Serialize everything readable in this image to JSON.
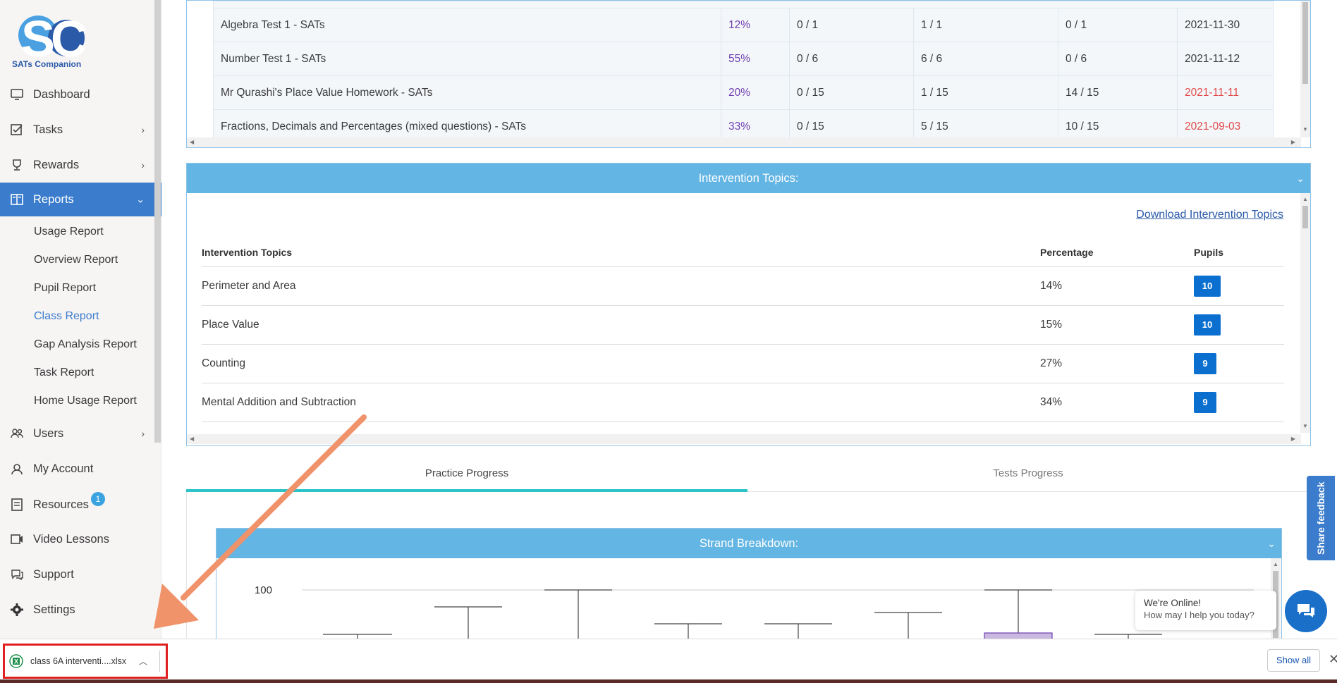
{
  "sidebar": {
    "logo_text": "SATs Companion",
    "items": [
      {
        "label": "Dashboard",
        "icon": "monitor-icon"
      },
      {
        "label": "Tasks",
        "icon": "tasks-icon"
      },
      {
        "label": "Rewards",
        "icon": "trophy-icon"
      },
      {
        "label": "Reports",
        "icon": "reports-icon"
      },
      {
        "label": "Users",
        "icon": "users-icon"
      },
      {
        "label": "My Account",
        "icon": "account-icon"
      },
      {
        "label": "Resources",
        "icon": "resources-icon"
      },
      {
        "label": "Video Lessons",
        "icon": "video-icon"
      },
      {
        "label": "Support",
        "icon": "support-icon"
      },
      {
        "label": "Settings",
        "icon": "gear-icon"
      }
    ],
    "resources_badge": "1",
    "report_subitems": [
      "Usage Report",
      "Overview Report",
      "Pupil Report",
      "Class Report",
      "Gap Analysis Report",
      "Task Report",
      "Home Usage Report"
    ]
  },
  "tests": {
    "rows": [
      {
        "name": "Algebra Test 1 - SATs",
        "pct": "12%",
        "c1": "0 / 1",
        "c2": "1 / 1",
        "c3": "0 / 1",
        "date": "2021-11-30",
        "late": false
      },
      {
        "name": "Number Test 1 - SATs",
        "pct": "55%",
        "c1": "0 / 6",
        "c2": "6 / 6",
        "c3": "0 / 6",
        "date": "2021-11-12",
        "late": false
      },
      {
        "name": "Mr Qurashi's Place Value Homework - SATs",
        "pct": "20%",
        "c1": "0 / 15",
        "c2": "1 / 15",
        "c3": "14 / 15",
        "date": "2021-11-11",
        "late": true
      },
      {
        "name": "Fractions, Decimals and Percentages (mixed questions) - SATs",
        "pct": "33%",
        "c1": "0 / 15",
        "c2": "5 / 15",
        "c3": "10 / 15",
        "date": "2021-09-03",
        "late": true
      }
    ]
  },
  "intervention": {
    "header": "Intervention Topics:",
    "download_link": "Download Intervention Topics",
    "columns": [
      "Intervention Topics",
      "Percentage",
      "Pupils"
    ],
    "rows": [
      {
        "topic": "Perimeter and Area",
        "pct": "14%",
        "pupils": "10"
      },
      {
        "topic": "Place Value",
        "pct": "15%",
        "pupils": "10"
      },
      {
        "topic": "Counting",
        "pct": "27%",
        "pupils": "9"
      },
      {
        "topic": "Mental Addition and Subtraction",
        "pct": "34%",
        "pupils": "9"
      }
    ]
  },
  "tabs": [
    "Practice Progress",
    "Tests Progress"
  ],
  "strand": {
    "header": "Strand Breakdown:",
    "y_tick": "100"
  },
  "feedback_label": "Share feedback",
  "chat": {
    "title": "We're Online!",
    "subtitle": "How may I help you today?"
  },
  "download_bar": {
    "file_name": "class 6A interventi....xlsx",
    "show_all": "Show all"
  },
  "colors": {
    "accent": "#3b7dcc",
    "header_blue": "#63b5e3",
    "pill": "#0b6fd0",
    "late_date": "#e04a4a",
    "pct_purple": "#6f3fb0",
    "highlight_border": "#e02020",
    "arrow": "#f0926a"
  }
}
